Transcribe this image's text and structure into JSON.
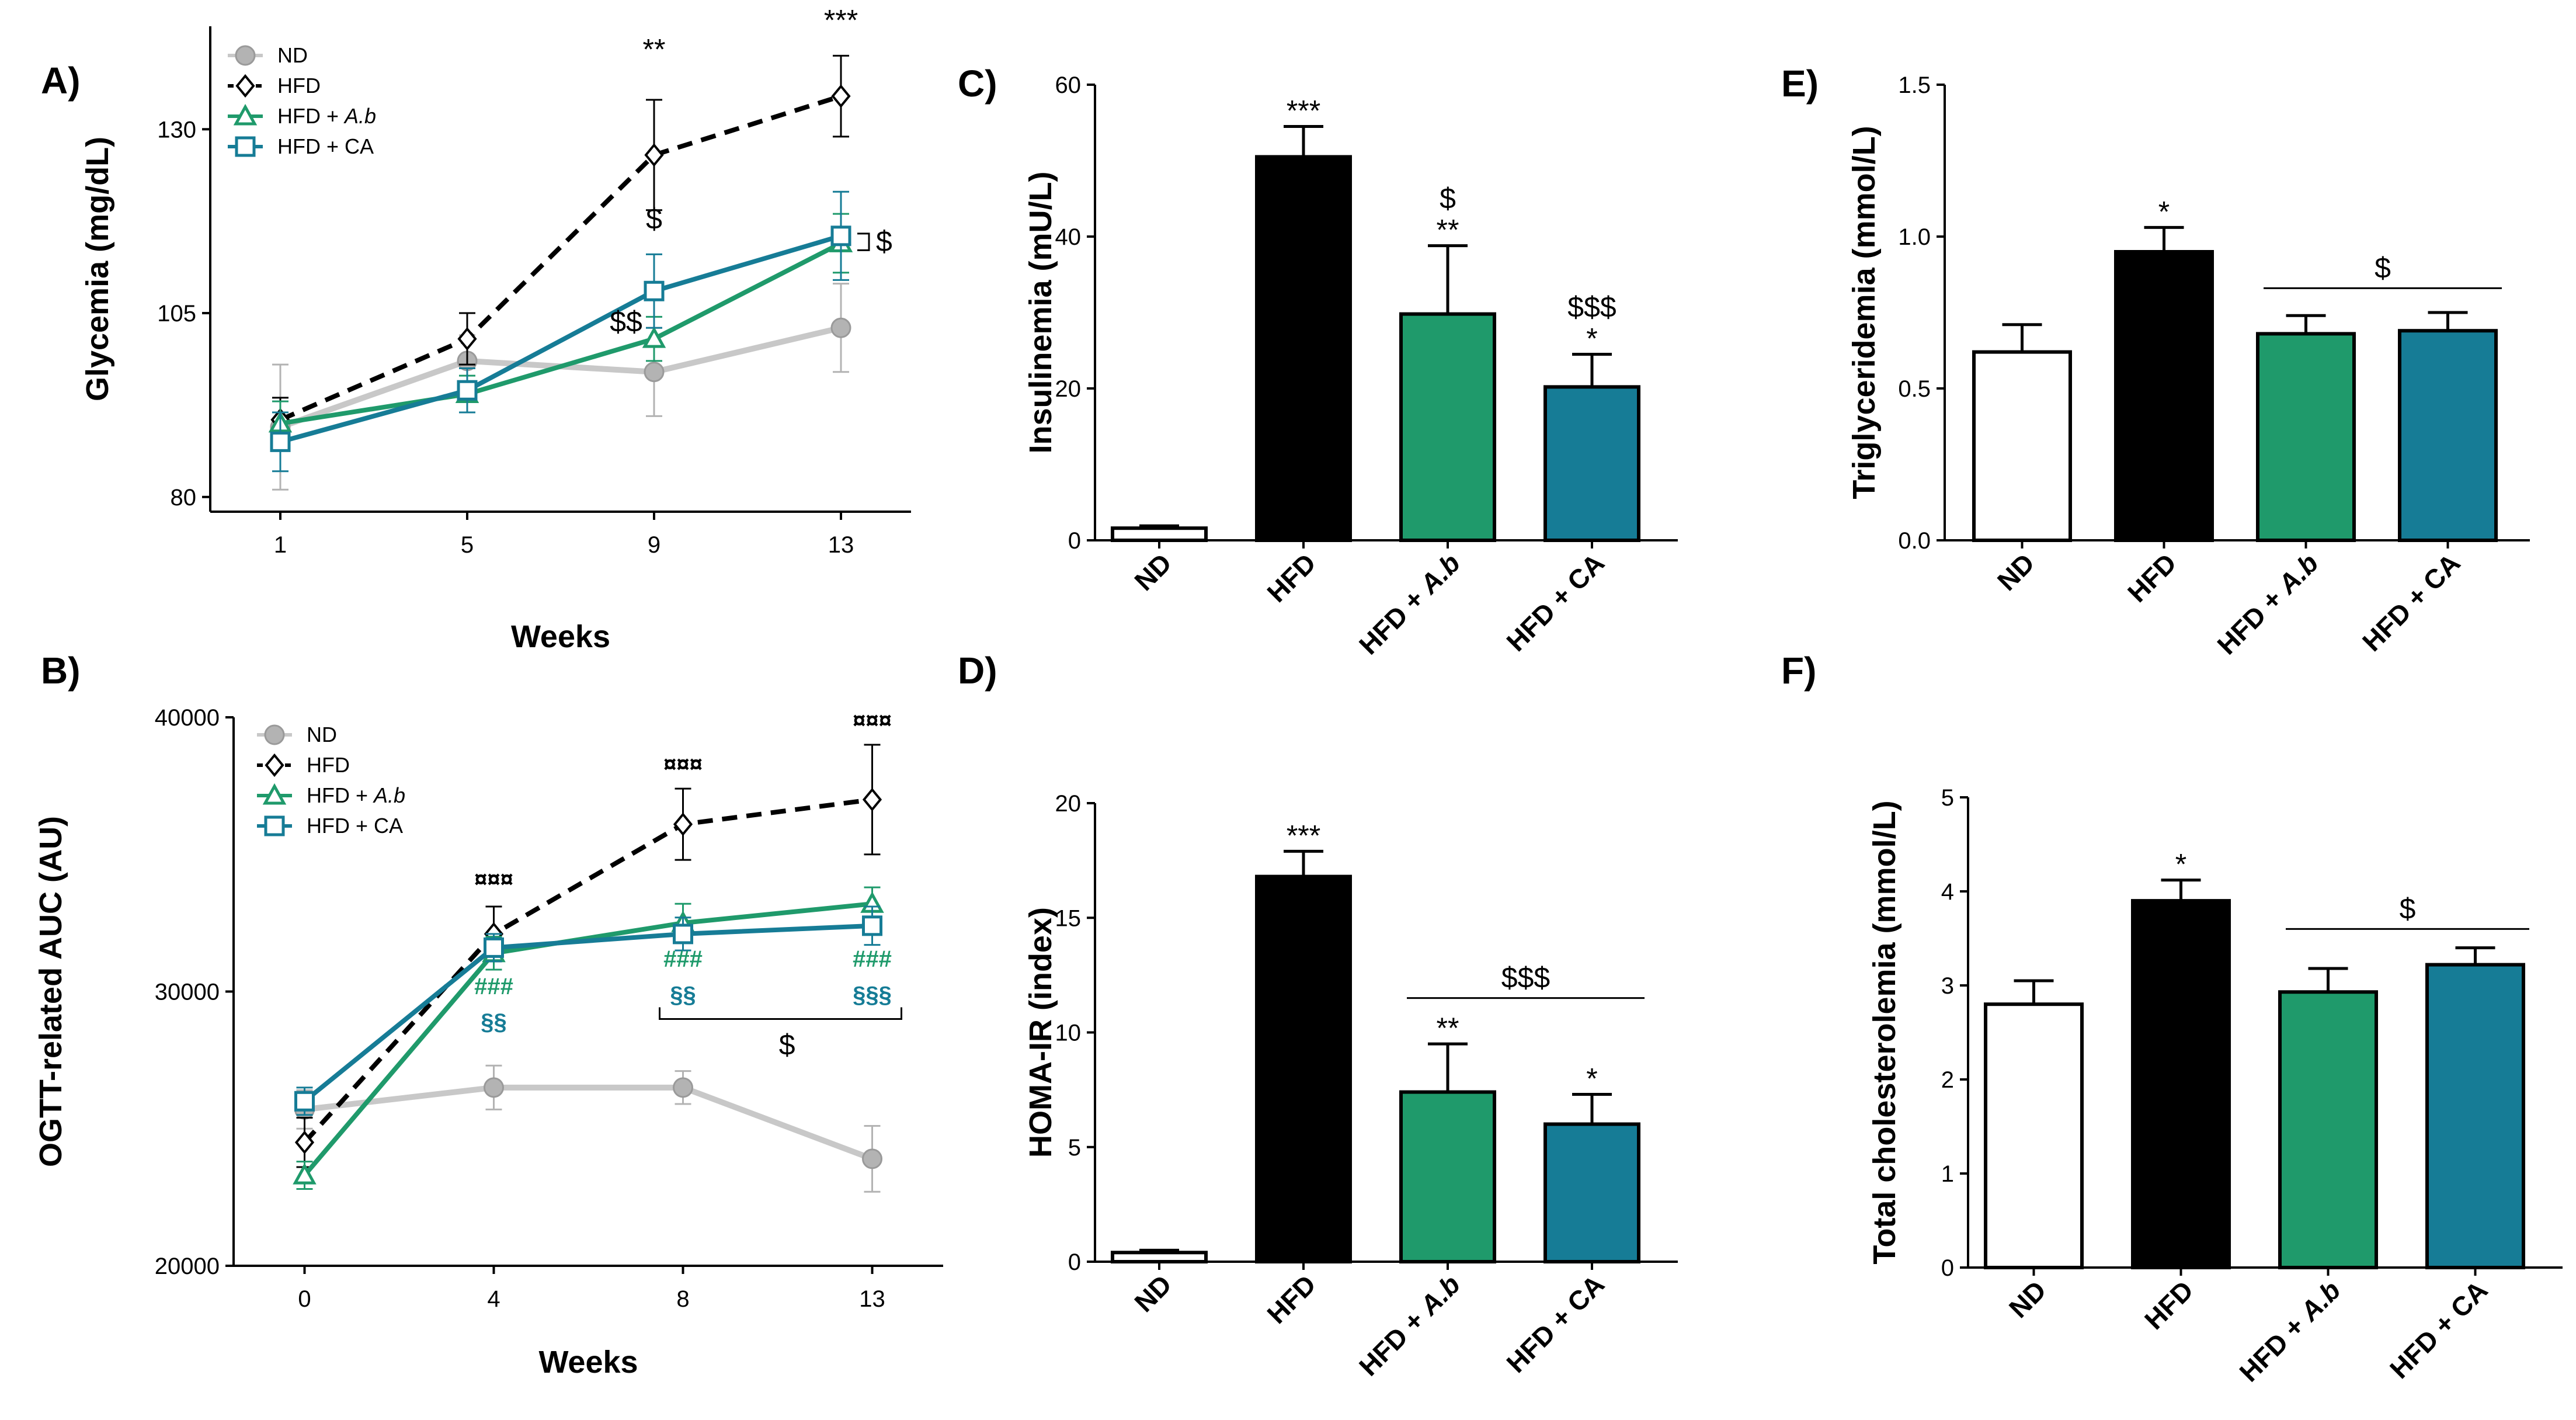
{
  "colors": {
    "ND": "#b3b3b3",
    "HFD": "#000000",
    "HFD_Ab": "#1f9a6b",
    "HFD_CA": "#167c96",
    "ND_bar": "#ffffff"
  },
  "chart_data": [
    {
      "id": "A",
      "panel_label": "A)",
      "type": "line",
      "xlabel": "Weeks",
      "ylabel": "Glycemia (mg/dL)",
      "ylim": [
        78,
        144
      ],
      "yticks": [
        80,
        105,
        130
      ],
      "x": [
        1,
        5,
        9,
        13
      ],
      "xticks": [
        1,
        5,
        9,
        13
      ],
      "xlim": [
        -0.5,
        14.5
      ],
      "legend": [
        "ND",
        "HFD",
        "HFD + A.b",
        "HFD + CA"
      ],
      "series": [
        {
          "name": "ND",
          "key": "ND",
          "marker": "circle",
          "dash": false,
          "values": [
            89.5,
            98.5,
            97,
            103
          ],
          "err": [
            8.5,
            3.5,
            6,
            6
          ]
        },
        {
          "name": "HFD",
          "key": "HFD",
          "marker": "diamond",
          "dash": true,
          "values": [
            90.5,
            101.5,
            126.5,
            134.5
          ],
          "err": [
            3,
            3.5,
            7.5,
            5.5
          ]
        },
        {
          "name": "HFD + A.b",
          "key": "HFD_Ab",
          "marker": "triangle",
          "dash": false,
          "values": [
            90,
            94,
            101.5,
            114.5
          ],
          "err": [
            3,
            2.5,
            3,
            4
          ]
        },
        {
          "name": "HFD + CA",
          "key": "HFD_CA",
          "marker": "square",
          "dash": false,
          "values": [
            87.5,
            94.5,
            108,
            115.5
          ],
          "err": [
            4,
            3,
            5,
            6
          ]
        }
      ],
      "annotations": [
        {
          "text": "**",
          "x": 9,
          "y": 139.5,
          "cls": "star",
          "color": "#000000"
        },
        {
          "text": "***",
          "x": 13,
          "y": 143.5,
          "cls": "star",
          "color": "#000000"
        },
        {
          "text": "$",
          "x": 9,
          "y": 116.5,
          "cls": "dollar",
          "color": "#000000"
        },
        {
          "text": "$$",
          "x": 8.4,
          "y": 102.5,
          "cls": "dollar",
          "color": "#000000"
        }
      ],
      "bracket_label": "$"
    },
    {
      "id": "B",
      "panel_label": "B)",
      "type": "line",
      "xlabel": "Weeks",
      "ylabel": "OGTT-related AUC (AU)",
      "ylim": [
        20000,
        40000
      ],
      "yticks": [
        20000,
        30000,
        40000
      ],
      "x": [
        0,
        4,
        8,
        13
      ],
      "xtick_pos": [
        0,
        4,
        8,
        12
      ],
      "xticks": [
        0,
        4,
        8,
        13
      ],
      "xlim": [
        -1.5,
        13.5
      ],
      "legend": [
        "ND",
        "HFD",
        "HFD + A.b",
        "HFD + CA"
      ],
      "series": [
        {
          "name": "ND",
          "key": "ND",
          "marker": "circle",
          "dash": false,
          "values": [
            25700,
            26500,
            26500,
            23900
          ],
          "err": [
            700,
            800,
            600,
            1200
          ]
        },
        {
          "name": "HFD",
          "key": "HFD",
          "marker": "diamond",
          "dash": true,
          "values": [
            24500,
            32100,
            36100,
            37000
          ],
          "err": [
            900,
            1000,
            1300,
            2000
          ]
        },
        {
          "name": "HFD + A.b",
          "key": "HFD_Ab",
          "marker": "triangle",
          "dash": false,
          "values": [
            23300,
            31400,
            32500,
            33200
          ],
          "err": [
            500,
            600,
            700,
            600
          ]
        },
        {
          "name": "HFD + CA",
          "key": "HFD_CA",
          "marker": "square",
          "dash": false,
          "values": [
            26000,
            31600,
            32100,
            32400
          ],
          "err": [
            500,
            500,
            600,
            700
          ]
        }
      ],
      "annotations": [
        {
          "text": "¤¤¤",
          "x": 4,
          "y": 33800,
          "cls": "sharp",
          "color": "#000000"
        },
        {
          "text": "¤¤¤",
          "x": 8,
          "y": 38000,
          "cls": "sharp",
          "color": "#000000"
        },
        {
          "text": "¤¤¤",
          "x": 12,
          "y": 39600,
          "cls": "sharp",
          "color": "#000000"
        },
        {
          "text": "###",
          "x": 4,
          "y": 29900,
          "cls": "sharp",
          "color": "#1f9a6b"
        },
        {
          "text": "§§",
          "x": 4,
          "y": 28600,
          "cls": "sharp",
          "color": "#167c96"
        },
        {
          "text": "###",
          "x": 8,
          "y": 30900,
          "cls": "sharp",
          "color": "#1f9a6b"
        },
        {
          "text": "§§",
          "x": 8,
          "y": 29600,
          "cls": "sharp",
          "color": "#167c96"
        },
        {
          "text": "###",
          "x": 12,
          "y": 30900,
          "cls": "sharp",
          "color": "#1f9a6b"
        },
        {
          "text": "§§§",
          "x": 12,
          "y": 29600,
          "cls": "sharp",
          "color": "#167c96"
        },
        {
          "text": "$",
          "x": 10.2,
          "y": 27700,
          "cls": "dollar",
          "color": "#000000"
        }
      ]
    },
    {
      "id": "C",
      "panel_label": "C)",
      "type": "bar",
      "ylabel": "Insulinemia (mU/L)",
      "ylim": [
        0,
        60
      ],
      "yticks": [
        0,
        20,
        40,
        60
      ],
      "categories": [
        "ND",
        "HFD",
        "HFD + A.b",
        "HFD + CA"
      ],
      "values": [
        1.6,
        50.5,
        29.8,
        20.2
      ],
      "err": [
        0.3,
        4,
        9,
        4.3
      ],
      "stars": [
        "",
        "***",
        "**",
        "*"
      ],
      "dollars": [
        "",
        "",
        "$",
        "$$$"
      ],
      "bracket": null
    },
    {
      "id": "D",
      "panel_label": "D)",
      "type": "bar",
      "ylabel": "HOMA-IR (index)",
      "ylim": [
        0,
        20
      ],
      "yticks": [
        0,
        5,
        10,
        15,
        20
      ],
      "categories": [
        "ND",
        "HFD",
        "HFD + A.b",
        "HFD + CA"
      ],
      "values": [
        0.4,
        16.8,
        7.4,
        6.0
      ],
      "err": [
        0.1,
        1.1,
        2.1,
        1.3
      ],
      "stars": [
        "",
        "***",
        "**",
        "*"
      ],
      "dollars": [
        "",
        "",
        "",
        ""
      ],
      "bracket": {
        "from": 2,
        "to": 3,
        "y": 11.5,
        "label": "$$$"
      }
    },
    {
      "id": "E",
      "panel_label": "E)",
      "type": "bar",
      "ylabel": "Triglyceridemia (mmol/L)",
      "ylim": [
        0,
        1.5
      ],
      "yticks": [
        "0.0",
        "0.5",
        "1.0",
        "1.5"
      ],
      "categories": [
        "ND",
        "HFD",
        "HFD + A.b",
        "HFD + CA"
      ],
      "values": [
        0.62,
        0.95,
        0.68,
        0.69
      ],
      "err": [
        0.09,
        0.08,
        0.06,
        0.06
      ],
      "stars": [
        "",
        "*",
        "",
        ""
      ],
      "dollars": [
        "",
        "",
        "",
        ""
      ],
      "bracket": {
        "from": 2,
        "to": 3,
        "y": 0.83,
        "label": "$"
      }
    },
    {
      "id": "F",
      "panel_label": "F)",
      "type": "bar",
      "ylabel": "Total cholesterolemia (mmol/L)",
      "ylim": [
        0,
        5
      ],
      "yticks": [
        0,
        1,
        2,
        3,
        4,
        5
      ],
      "categories": [
        "ND",
        "HFD",
        "HFD + A.b",
        "HFD + CA"
      ],
      "values": [
        2.8,
        3.9,
        2.93,
        3.22
      ],
      "err": [
        0.25,
        0.22,
        0.25,
        0.18
      ],
      "stars": [
        "",
        "*",
        "",
        ""
      ],
      "dollars": [
        "",
        "",
        "",
        ""
      ],
      "bracket": {
        "from": 2,
        "to": 3,
        "y": 3.6,
        "label": "$"
      }
    }
  ]
}
